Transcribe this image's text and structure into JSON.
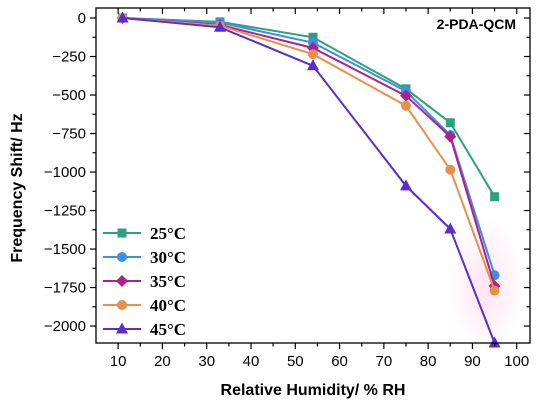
{
  "chart_data": {
    "type": "line",
    "title": "",
    "annotation": "2-PDA-QCM",
    "xlabel": "Relative Humidity/ % RH",
    "ylabel": "Frequency Shift/ Hz",
    "xlim": [
      5,
      103
    ],
    "ylim": [
      -2110,
      65
    ],
    "x_ticks": [
      10,
      20,
      30,
      40,
      50,
      60,
      70,
      80,
      90,
      100
    ],
    "y_ticks": [
      0,
      -250,
      -500,
      -750,
      -1000,
      -1250,
      -1500,
      -1750,
      -2000
    ],
    "y_tick_labels": [
      "0",
      "−250",
      "−500",
      "−750",
      "−1000",
      "−1250",
      "−1500",
      "−1750",
      "−2000"
    ],
    "grid": false,
    "legend_position": "bottom-left",
    "x": [
      11,
      33,
      54,
      75,
      85,
      95
    ],
    "series": [
      {
        "name": "25°C",
        "color": "#2aa37c",
        "marker": "square",
        "values": [
          0,
          -25,
          -125,
          -460,
          -680,
          -1160
        ]
      },
      {
        "name": "30°C",
        "color": "#3e8fe8",
        "marker": "circle",
        "values": [
          0,
          -30,
          -160,
          -475,
          -760,
          -1670
        ]
      },
      {
        "name": "35°C",
        "color": "#b0208a",
        "marker": "diamond",
        "values": [
          0,
          -45,
          -195,
          -505,
          -770,
          -1740
        ]
      },
      {
        "name": "40°C",
        "color": "#e8904a",
        "marker": "circle",
        "values": [
          0,
          -50,
          -235,
          -570,
          -985,
          -1770
        ]
      },
      {
        "name": "45°C",
        "color": "#5b2ccf",
        "marker": "triangle",
        "values": [
          0,
          -60,
          -310,
          -1090,
          -1370,
          -2110
        ]
      }
    ]
  }
}
